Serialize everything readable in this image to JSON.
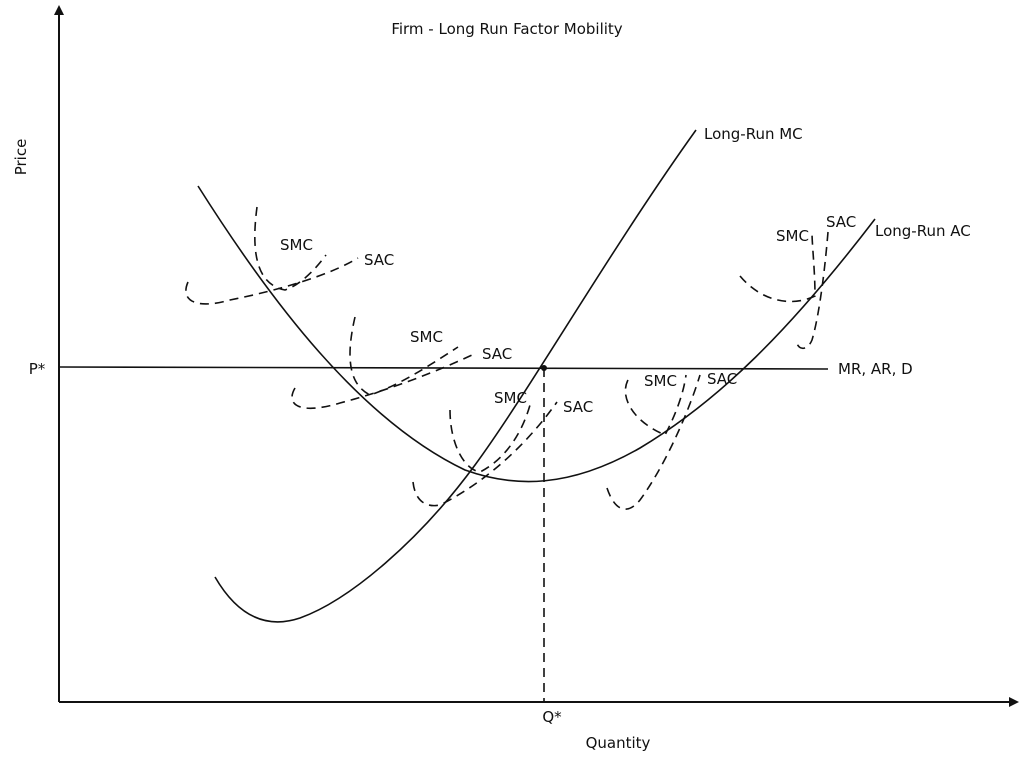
{
  "title": "Firm - Long Run Factor Mobility",
  "axes": {
    "y_label": "Price",
    "x_label": "Quantity",
    "p_star": "P*",
    "q_star": "Q*"
  },
  "curve_labels": {
    "long_run_mc": "Long-Run MC",
    "long_run_ac": "Long-Run AC",
    "mr_ar_d": "MR, AR, D"
  },
  "short_run_sets": [
    {
      "smc": "SMC",
      "sac": "SAC"
    },
    {
      "smc": "SMC",
      "sac": "SAC"
    },
    {
      "smc": "SMC",
      "sac": "SAC"
    },
    {
      "smc": "SMC",
      "sac": "SAC"
    },
    {
      "smc": "SMC",
      "sac": "SAC"
    }
  ],
  "colors": {
    "ink": "#111111",
    "background": "#ffffff"
  }
}
